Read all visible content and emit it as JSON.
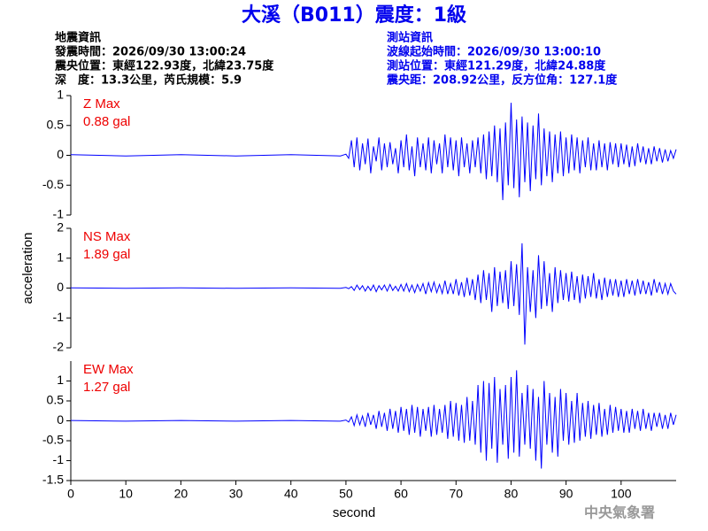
{
  "title": "大溪（B011）震度：1級",
  "event_info": [
    "地震資訊",
    "發震時間：2026/09/30 13:00:24",
    "震央位置：東經122.93度，北緯23.75度",
    "深　度：13.3公里，芮氏規模：5.9"
  ],
  "station_info": [
    "測站資訊",
    "波線起始時間：2026/09/30 13:00:10",
    "測站位置：東經121.29度，北緯24.88度",
    "震央距：208.92公里，反方位角：127.1度"
  ],
  "y_label": "acceleration",
  "footer": "中央氣象署",
  "chart_data": [
    {
      "type": "line",
      "color": "#0000ff",
      "annotations": [
        "Z Max",
        "0.88 gal"
      ],
      "xlim": [
        0,
        110
      ],
      "ylim": [
        -1,
        1
      ],
      "yticks": [
        -1,
        -0.5,
        0,
        0.5,
        1
      ],
      "x": [
        0,
        10,
        20,
        30,
        40,
        49,
        50,
        50.5,
        51,
        51.5,
        52,
        52.5,
        53,
        53.5,
        54,
        54.5,
        55,
        55.5,
        56,
        56.5,
        57,
        57.5,
        58,
        58.5,
        59,
        59.5,
        60,
        60.5,
        61,
        61.5,
        62,
        62.5,
        63,
        63.5,
        64,
        64.5,
        65,
        65.5,
        66,
        66.5,
        67,
        67.5,
        68,
        68.5,
        69,
        69.5,
        70,
        70.5,
        71,
        71.5,
        72,
        72.5,
        73,
        73.5,
        74,
        74.5,
        75,
        75.5,
        76,
        76.5,
        77,
        77.5,
        78,
        78.5,
        79,
        79.5,
        80,
        80.5,
        81,
        81.5,
        82,
        82.5,
        83,
        83.5,
        84,
        84.5,
        85,
        85.5,
        86,
        86.5,
        87,
        87.5,
        88,
        88.5,
        89,
        89.5,
        90,
        90.5,
        91,
        91.5,
        92,
        92.5,
        93,
        93.5,
        94,
        94.5,
        95,
        95.5,
        96,
        96.5,
        97,
        97.5,
        98,
        98.5,
        99,
        99.5,
        100,
        100.5,
        101,
        101.5,
        102,
        102.5,
        103,
        103.5,
        104,
        104.5,
        105,
        105.5,
        106,
        106.5,
        107,
        107.5,
        108,
        108.5,
        109,
        109.5,
        110
      ],
      "values": [
        0.01,
        -0.01,
        0.01,
        -0.01,
        0.01,
        -0.01,
        0.02,
        -0.05,
        0.25,
        -0.2,
        0.3,
        -0.25,
        0.2,
        -0.15,
        0.28,
        -0.3,
        0.15,
        -0.1,
        0.3,
        -0.25,
        0.2,
        -0.2,
        0.22,
        -0.15,
        0.12,
        -0.3,
        0.25,
        -0.2,
        0.35,
        -0.25,
        0.15,
        -0.35,
        0.3,
        -0.2,
        0.2,
        -0.25,
        0.3,
        -0.3,
        0.25,
        -0.15,
        0.2,
        -0.3,
        0.35,
        -0.2,
        0.3,
        -0.25,
        0.25,
        -0.35,
        0.3,
        -0.2,
        0.2,
        -0.3,
        0.25,
        -0.2,
        0.3,
        -0.3,
        0.35,
        -0.4,
        0.4,
        -0.35,
        0.5,
        -0.45,
        0.45,
        -0.75,
        0.55,
        -0.5,
        0.88,
        -0.55,
        0.6,
        -0.7,
        0.65,
        -0.45,
        0.55,
        -0.6,
        0.5,
        -0.4,
        0.7,
        -0.5,
        0.45,
        -0.35,
        0.4,
        -0.45,
        0.35,
        -0.3,
        0.4,
        -0.35,
        0.3,
        -0.3,
        0.35,
        -0.25,
        0.3,
        -0.3,
        0.25,
        -0.2,
        0.3,
        -0.25,
        0.2,
        -0.25,
        0.25,
        -0.2,
        0.2,
        -0.25,
        0.22,
        -0.15,
        0.2,
        -0.2,
        0.2,
        -0.15,
        0.18,
        -0.2,
        0.15,
        -0.18,
        0.2,
        -0.12,
        0.15,
        -0.15,
        0.12,
        -0.15,
        0.15,
        -0.1,
        0.12,
        -0.12,
        0.1,
        -0.1,
        0.08,
        -0.05,
        0.1
      ]
    },
    {
      "type": "line",
      "color": "#0000ff",
      "annotations": [
        "NS Max",
        "1.89 gal"
      ],
      "xlim": [
        0,
        110
      ],
      "ylim": [
        -2,
        2
      ],
      "yticks": [
        -2,
        -1,
        0,
        1,
        2
      ],
      "x": [
        0,
        10,
        20,
        30,
        40,
        49,
        50,
        50.5,
        51,
        51.5,
        52,
        52.5,
        53,
        53.5,
        54,
        54.5,
        55,
        55.5,
        56,
        56.5,
        57,
        57.5,
        58,
        58.5,
        59,
        59.5,
        60,
        60.5,
        61,
        61.5,
        62,
        62.5,
        63,
        63.5,
        64,
        64.5,
        65,
        65.5,
        66,
        66.5,
        67,
        67.5,
        68,
        68.5,
        69,
        69.5,
        70,
        70.5,
        71,
        71.5,
        72,
        72.5,
        73,
        73.5,
        74,
        74.5,
        75,
        75.5,
        76,
        76.5,
        77,
        77.5,
        78,
        78.5,
        79,
        79.5,
        80,
        80.5,
        81,
        81.5,
        82,
        82.5,
        83,
        83.5,
        84,
        84.5,
        85,
        85.5,
        86,
        86.5,
        87,
        87.5,
        88,
        88.5,
        89,
        89.5,
        90,
        90.5,
        91,
        91.5,
        92,
        92.5,
        93,
        93.5,
        94,
        94.5,
        95,
        95.5,
        96,
        96.5,
        97,
        97.5,
        98,
        98.5,
        99,
        99.5,
        100,
        100.5,
        101,
        101.5,
        102,
        102.5,
        103,
        103.5,
        104,
        104.5,
        105,
        105.5,
        106,
        106.5,
        107,
        107.5,
        108,
        108.5,
        109,
        109.5,
        110
      ],
      "values": [
        0.01,
        -0.01,
        0.01,
        -0.01,
        0.01,
        -0.01,
        0.02,
        -0.02,
        0.05,
        -0.08,
        0.1,
        -0.05,
        0.08,
        -0.1,
        0.06,
        -0.08,
        0.1,
        -0.12,
        0.08,
        -0.06,
        0.1,
        -0.1,
        0.12,
        -0.08,
        0.06,
        -0.1,
        0.12,
        -0.1,
        0.15,
        -0.12,
        0.1,
        -0.15,
        0.12,
        -0.1,
        0.15,
        -0.2,
        0.18,
        -0.12,
        0.2,
        -0.15,
        0.12,
        -0.18,
        0.25,
        -0.2,
        0.15,
        -0.2,
        0.3,
        -0.25,
        0.2,
        -0.3,
        0.35,
        -0.25,
        0.3,
        -0.4,
        0.45,
        -0.5,
        0.6,
        -0.4,
        0.5,
        -0.8,
        0.7,
        -0.6,
        0.55,
        -0.5,
        0.6,
        -0.7,
        0.9,
        -0.6,
        0.8,
        -0.9,
        1.5,
        -1.89,
        0.7,
        -0.8,
        0.6,
        -1.0,
        1.1,
        -0.7,
        0.9,
        -0.6,
        0.5,
        -0.8,
        0.7,
        -0.5,
        0.6,
        -0.4,
        0.5,
        -0.45,
        0.55,
        -0.4,
        0.4,
        -0.5,
        0.45,
        -0.35,
        0.4,
        -0.3,
        0.5,
        -0.35,
        0.3,
        -0.4,
        0.35,
        -0.3,
        0.3,
        -0.25,
        0.3,
        -0.3,
        0.25,
        -0.3,
        0.3,
        -0.2,
        0.25,
        -0.25,
        0.3,
        -0.2,
        0.25,
        -0.2,
        0.2,
        -0.25,
        0.3,
        -0.15,
        0.2,
        -0.2,
        0.15,
        -0.2,
        0.15,
        -0.1,
        -0.2
      ]
    },
    {
      "type": "line",
      "color": "#0000ff",
      "annotations": [
        "EW Max",
        "1.27 gal"
      ],
      "xlim": [
        0,
        110
      ],
      "ylim": [
        -1.5,
        1.5
      ],
      "yticks": [
        -1.5,
        -1,
        -0.5,
        0,
        0.5,
        1
      ],
      "xticks": [
        0,
        10,
        20,
        30,
        40,
        50,
        60,
        70,
        80,
        90,
        100
      ],
      "x_label": "second",
      "x": [
        0,
        10,
        20,
        30,
        40,
        49,
        50,
        50.5,
        51,
        51.5,
        52,
        52.5,
        53,
        53.5,
        54,
        54.5,
        55,
        55.5,
        56,
        56.5,
        57,
        57.5,
        58,
        58.5,
        59,
        59.5,
        60,
        60.5,
        61,
        61.5,
        62,
        62.5,
        63,
        63.5,
        64,
        64.5,
        65,
        65.5,
        66,
        66.5,
        67,
        67.5,
        68,
        68.5,
        69,
        69.5,
        70,
        70.5,
        71,
        71.5,
        72,
        72.5,
        73,
        73.5,
        74,
        74.5,
        75,
        75.5,
        76,
        76.5,
        77,
        77.5,
        78,
        78.5,
        79,
        79.5,
        80,
        80.5,
        81,
        81.5,
        82,
        82.5,
        83,
        83.5,
        84,
        84.5,
        85,
        85.5,
        86,
        86.5,
        87,
        87.5,
        88,
        88.5,
        89,
        89.5,
        90,
        90.5,
        91,
        91.5,
        92,
        92.5,
        93,
        93.5,
        94,
        94.5,
        95,
        95.5,
        96,
        96.5,
        97,
        97.5,
        98,
        98.5,
        99,
        99.5,
        100,
        100.5,
        101,
        101.5,
        102,
        102.5,
        103,
        103.5,
        104,
        104.5,
        105,
        105.5,
        106,
        106.5,
        107,
        107.5,
        108,
        108.5,
        109,
        109.5,
        110
      ],
      "values": [
        0.01,
        -0.01,
        0.01,
        -0.01,
        0.01,
        -0.01,
        0.02,
        -0.03,
        0.1,
        -0.12,
        0.15,
        -0.1,
        0.12,
        -0.15,
        0.2,
        -0.1,
        0.15,
        -0.2,
        0.25,
        -0.15,
        0.2,
        -0.25,
        0.3,
        -0.2,
        0.25,
        -0.3,
        0.35,
        -0.25,
        0.3,
        -0.35,
        0.4,
        -0.3,
        0.35,
        -0.4,
        0.3,
        -0.25,
        0.35,
        -0.4,
        0.4,
        -0.35,
        0.3,
        -0.3,
        0.4,
        -0.45,
        0.5,
        -0.4,
        0.45,
        -0.5,
        0.4,
        -0.55,
        0.6,
        -0.5,
        0.5,
        -0.6,
        0.9,
        -0.8,
        1.0,
        -1.0,
        0.95,
        -0.7,
        1.1,
        -1.05,
        0.8,
        -0.6,
        0.9,
        -0.95,
        1.1,
        -0.8,
        1.27,
        -0.9,
        0.7,
        -0.6,
        0.9,
        -0.7,
        0.8,
        -1.0,
        0.6,
        -1.2,
        1.0,
        -0.6,
        0.7,
        -0.8,
        0.6,
        -0.9,
        0.8,
        -0.5,
        0.7,
        -0.6,
        0.5,
        -0.55,
        0.7,
        -0.5,
        0.45,
        -0.4,
        0.5,
        -0.45,
        0.4,
        -0.35,
        0.45,
        -0.4,
        0.3,
        -0.35,
        0.4,
        -0.3,
        0.35,
        -0.25,
        0.3,
        -0.3,
        0.25,
        -0.3,
        0.3,
        -0.2,
        0.25,
        -0.25,
        0.3,
        -0.2,
        0.2,
        -0.25,
        0.2,
        -0.15,
        0.2,
        -0.2,
        0.15,
        -0.2,
        0.2,
        -0.1,
        0.15
      ]
    }
  ]
}
